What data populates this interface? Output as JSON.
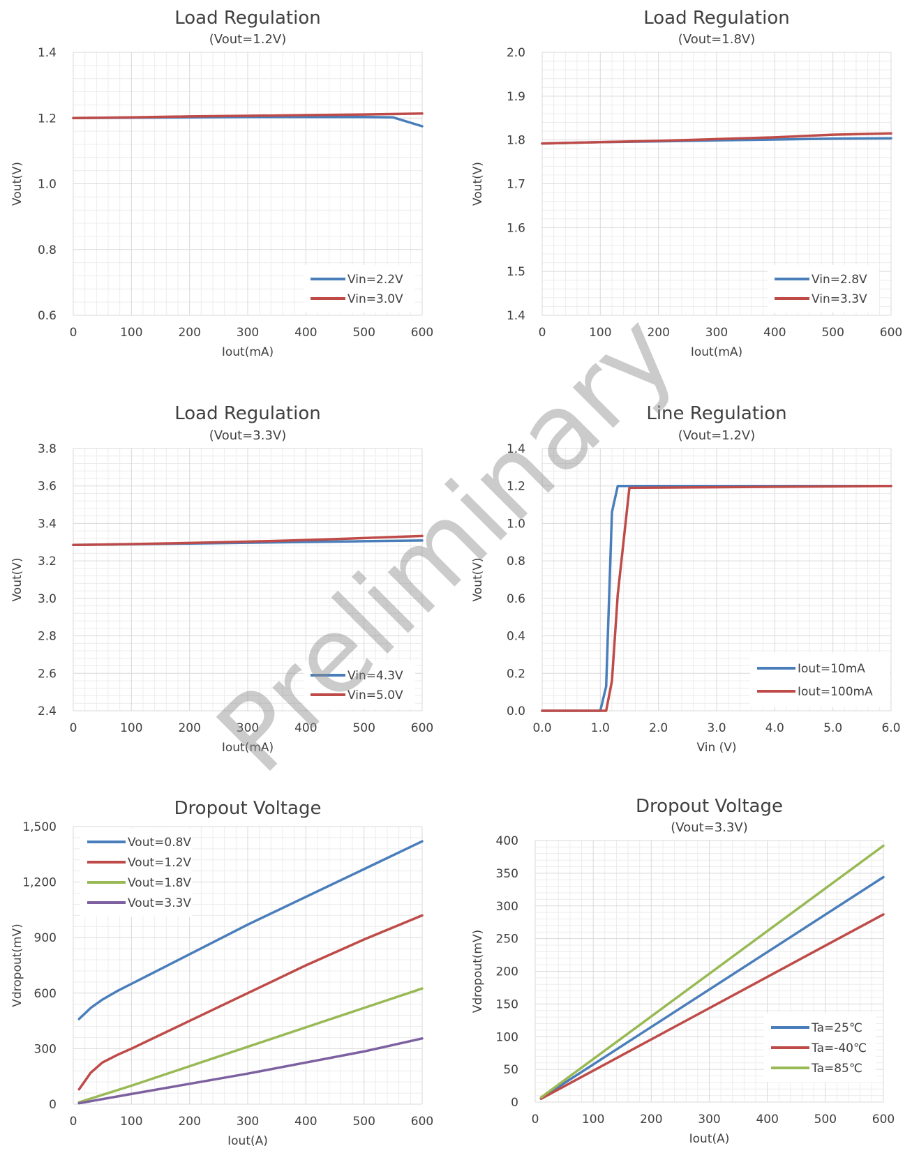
{
  "watermark": "Preliminary",
  "colors": {
    "blue": "#4a7ebb",
    "red": "#be4b48",
    "green": "#98b954",
    "purple": "#7d60a0",
    "grid_major": "#d9d9d9",
    "grid_minor": "#ececec",
    "text": "#404040"
  },
  "chart_data": [
    {
      "type": "line",
      "title": "Load Regulation",
      "subtitle": "(Vout=1.2V)",
      "xlabel": "Iout(mA)",
      "ylabel": "Vout(V)",
      "xlim": [
        0,
        600
      ],
      "ylim": [
        0.6,
        1.4
      ],
      "x_ticks": [
        0,
        100,
        200,
        300,
        400,
        500,
        600
      ],
      "y_ticks": [
        0.6,
        0.8,
        1.0,
        1.2,
        1.4
      ],
      "x_tick_labels": [
        "0",
        "100",
        "200",
        "300",
        "400",
        "500",
        "600"
      ],
      "y_tick_labels": [
        "0.6",
        "0.8",
        "1.0",
        "1.2",
        "1.4"
      ],
      "grid": true,
      "legend": "bottom-right",
      "series": [
        {
          "name": "Vin=2.2V",
          "color": "blue",
          "x": [
            0,
            100,
            200,
            300,
            400,
            500,
            550,
            600
          ],
          "y": [
            1.2,
            1.201,
            1.202,
            1.203,
            1.203,
            1.203,
            1.202,
            1.175
          ]
        },
        {
          "name": "Vin=3.0V",
          "color": "red",
          "x": [
            0,
            100,
            200,
            300,
            400,
            500,
            600
          ],
          "y": [
            1.2,
            1.202,
            1.205,
            1.207,
            1.209,
            1.211,
            1.214
          ]
        }
      ]
    },
    {
      "type": "line",
      "title": "Load Regulation",
      "subtitle": "(Vout=1.8V)",
      "xlabel": "Iout(mA)",
      "ylabel": "Vout(V)",
      "xlim": [
        0,
        600
      ],
      "ylim": [
        1.4,
        2.0
      ],
      "x_ticks": [
        0,
        100,
        200,
        300,
        400,
        500,
        600
      ],
      "y_ticks": [
        1.4,
        1.5,
        1.6,
        1.7,
        1.8,
        1.9,
        2.0
      ],
      "x_tick_labels": [
        "0",
        "100",
        "200",
        "300",
        "400",
        "500",
        "600"
      ],
      "y_tick_labels": [
        "1.4",
        "1.5",
        "1.6",
        "1.7",
        "1.8",
        "1.9",
        "2.0"
      ],
      "grid": true,
      "legend": "bottom-right",
      "series": [
        {
          "name": "Vin=2.8V",
          "color": "blue",
          "x": [
            0,
            100,
            200,
            300,
            400,
            500,
            600
          ],
          "y": [
            1.792,
            1.795,
            1.797,
            1.799,
            1.801,
            1.803,
            1.804
          ]
        },
        {
          "name": "Vin=3.3V",
          "color": "red",
          "x": [
            0,
            100,
            200,
            300,
            400,
            500,
            600
          ],
          "y": [
            1.792,
            1.795,
            1.798,
            1.802,
            1.806,
            1.812,
            1.815
          ]
        }
      ]
    },
    {
      "type": "line",
      "title": "Load Regulation",
      "subtitle": "(Vout=3.3V)",
      "xlabel": "Iout(mA)",
      "ylabel": "Vout(V)",
      "xlim": [
        0,
        600
      ],
      "ylim": [
        2.4,
        3.8
      ],
      "x_ticks": [
        0,
        100,
        200,
        300,
        400,
        500,
        600
      ],
      "y_ticks": [
        2.4,
        2.6,
        2.8,
        3.0,
        3.2,
        3.4,
        3.6,
        3.8
      ],
      "x_tick_labels": [
        "0",
        "100",
        "200",
        "300",
        "400",
        "500",
        "600"
      ],
      "y_tick_labels": [
        "2.4",
        "2.6",
        "2.8",
        "3.0",
        "3.2",
        "3.4",
        "3.6",
        "3.8"
      ],
      "grid": true,
      "legend": "bottom-right",
      "series": [
        {
          "name": "Vin=4.3V",
          "color": "blue",
          "x": [
            0,
            100,
            200,
            300,
            400,
            500,
            600
          ],
          "y": [
            3.285,
            3.289,
            3.293,
            3.297,
            3.301,
            3.305,
            3.309
          ]
        },
        {
          "name": "Vin=5.0V",
          "color": "red",
          "x": [
            0,
            100,
            200,
            300,
            400,
            500,
            600
          ],
          "y": [
            3.285,
            3.29,
            3.296,
            3.303,
            3.311,
            3.322,
            3.333
          ]
        }
      ]
    },
    {
      "type": "line",
      "title": "Line Regulation",
      "subtitle": "(Vout=1.2V)",
      "xlabel": "Vin (V)",
      "ylabel": "Vout(V)",
      "xlim": [
        0,
        6
      ],
      "ylim": [
        0,
        1.4
      ],
      "x_ticks": [
        0,
        1,
        2,
        3,
        4,
        5,
        6
      ],
      "y_ticks": [
        0,
        0.2,
        0.4,
        0.6,
        0.8,
        1.0,
        1.2,
        1.4
      ],
      "x_tick_labels": [
        "0.0",
        "1.0",
        "2.0",
        "3.0",
        "4.0",
        "5.0",
        "6.0"
      ],
      "y_tick_labels": [
        "0.0",
        "0.2",
        "0.4",
        "0.6",
        "0.8",
        "1.0",
        "1.2",
        "1.4"
      ],
      "grid": true,
      "legend": "bottom-right",
      "series": [
        {
          "name": "Iout=10mA",
          "color": "blue",
          "x": [
            0,
            1.0,
            1.1,
            1.2,
            1.3,
            6.0
          ],
          "y": [
            0,
            0,
            0.13,
            1.06,
            1.2,
            1.2
          ]
        },
        {
          "name": "Iout=100mA",
          "color": "red",
          "x": [
            0,
            1.1,
            1.2,
            1.3,
            1.5,
            6.0
          ],
          "y": [
            0,
            0,
            0.16,
            0.62,
            1.19,
            1.2
          ]
        }
      ]
    },
    {
      "type": "line",
      "title": "Dropout Voltage",
      "subtitle": "",
      "xlabel": "Iout(A)",
      "ylabel": "Vdropout(mV)",
      "xlim": [
        0,
        600
      ],
      "ylim": [
        0,
        1500
      ],
      "x_ticks": [
        0,
        100,
        200,
        300,
        400,
        500,
        600
      ],
      "y_ticks": [
        0,
        300,
        600,
        900,
        1200,
        1500
      ],
      "x_tick_labels": [
        "0",
        "100",
        "200",
        "300",
        "400",
        "500",
        "600"
      ],
      "y_tick_labels": [
        "0",
        "300",
        "600",
        "900",
        "1,200",
        "1,500"
      ],
      "grid": true,
      "legend": "top-left",
      "series": [
        {
          "name": "Vout=0.8V",
          "color": "blue",
          "x": [
            10,
            30,
            50,
            75,
            100,
            150,
            200,
            300,
            400,
            500,
            600
          ],
          "y": [
            460,
            520,
            565,
            610,
            650,
            730,
            810,
            970,
            1120,
            1270,
            1420
          ]
        },
        {
          "name": "Vout=1.2V",
          "color": "red",
          "x": [
            10,
            30,
            50,
            75,
            100,
            150,
            200,
            300,
            400,
            500,
            600
          ],
          "y": [
            80,
            170,
            225,
            265,
            300,
            375,
            450,
            600,
            750,
            890,
            1020
          ]
        },
        {
          "name": "Vout=1.8V",
          "color": "green",
          "x": [
            10,
            100,
            200,
            300,
            400,
            500,
            600
          ],
          "y": [
            10,
            100,
            205,
            310,
            415,
            520,
            625
          ]
        },
        {
          "name": "Vout=3.3V",
          "color": "purple",
          "x": [
            10,
            100,
            200,
            300,
            400,
            500,
            600
          ],
          "y": [
            5,
            55,
            110,
            165,
            225,
            285,
            355
          ]
        }
      ]
    },
    {
      "type": "line",
      "title": "Dropout Voltage",
      "subtitle": "(Vout=3.3V)",
      "xlabel": "Iout(A)",
      "ylabel": "Vdropout(mV)",
      "xlim": [
        0,
        600
      ],
      "ylim": [
        0,
        400
      ],
      "x_ticks": [
        0,
        100,
        200,
        300,
        400,
        500,
        600
      ],
      "y_ticks": [
        0,
        50,
        100,
        150,
        200,
        250,
        300,
        350,
        400
      ],
      "x_tick_labels": [
        "0",
        "100",
        "200",
        "300",
        "400",
        "500",
        "600"
      ],
      "y_tick_labels": [
        "0",
        "50",
        "100",
        "150",
        "200",
        "250",
        "300",
        "350",
        "400"
      ],
      "grid": true,
      "legend": "bottom-right",
      "series": [
        {
          "name": "Ta=25℃",
          "color": "blue",
          "x": [
            10,
            600
          ],
          "y": [
            6,
            344
          ]
        },
        {
          "name": "Ta=-40℃",
          "color": "red",
          "x": [
            10,
            600
          ],
          "y": [
            5,
            287
          ]
        },
        {
          "name": "Ta=85℃",
          "color": "green",
          "x": [
            10,
            600
          ],
          "y": [
            7,
            392
          ]
        }
      ]
    }
  ]
}
